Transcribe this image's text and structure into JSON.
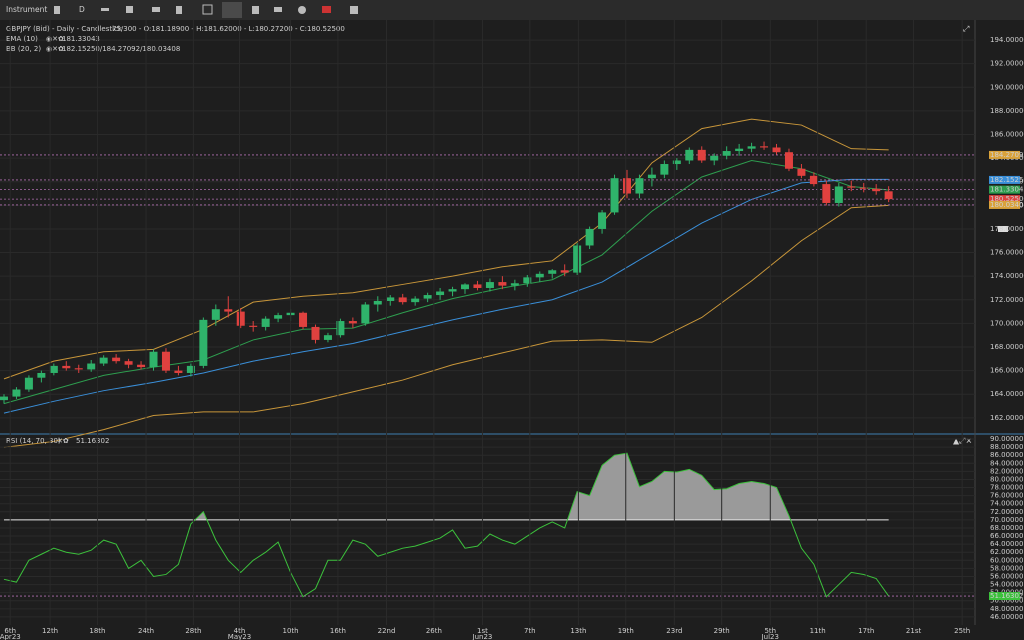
{
  "toolbar": {
    "instrument": "Instrument",
    "period": "D"
  },
  "chart_data": [
    {
      "type": "candlestick",
      "title": "GBPJPY (Bid) - Daily - Candlestick",
      "subtitle": "75/300 - O:181.18900 - H:181.62000 - L:180.27200 - C:180.52500",
      "up_color": "#2fb36b",
      "down_color": "#e0413f",
      "candles": [
        [
          163.5,
          164.0,
          163.2,
          163.8
        ],
        [
          163.8,
          164.6,
          163.6,
          164.4
        ],
        [
          164.4,
          165.6,
          164.2,
          165.4
        ],
        [
          165.4,
          166.0,
          165.0,
          165.8
        ],
        [
          165.8,
          166.6,
          165.6,
          166.4
        ],
        [
          166.4,
          166.8,
          166.0,
          166.2
        ],
        [
          166.2,
          166.5,
          165.8,
          166.1
        ],
        [
          166.1,
          166.9,
          165.9,
          166.6
        ],
        [
          166.6,
          167.3,
          166.4,
          167.1
        ],
        [
          167.1,
          167.4,
          166.6,
          166.8
        ],
        [
          166.8,
          167.0,
          166.2,
          166.5
        ],
        [
          166.5,
          166.8,
          166.1,
          166.3
        ],
        [
          166.3,
          167.8,
          166.0,
          167.6
        ],
        [
          167.6,
          167.9,
          165.8,
          166.0
        ],
        [
          166.0,
          166.4,
          165.6,
          165.8
        ],
        [
          165.8,
          166.6,
          165.5,
          166.4
        ],
        [
          166.4,
          170.5,
          166.2,
          170.3
        ],
        [
          170.3,
          171.6,
          169.8,
          171.2
        ],
        [
          171.2,
          172.3,
          170.5,
          171.0
        ],
        [
          171.0,
          171.3,
          169.6,
          169.8
        ],
        [
          169.8,
          170.2,
          169.3,
          169.7
        ],
        [
          169.7,
          170.6,
          169.4,
          170.4
        ],
        [
          170.4,
          170.9,
          170.1,
          170.7
        ],
        [
          170.7,
          171.2,
          170.2,
          170.9
        ],
        [
          170.9,
          171.0,
          169.5,
          169.7
        ],
        [
          169.7,
          169.9,
          168.3,
          168.6
        ],
        [
          168.6,
          169.2,
          168.4,
          169.0
        ],
        [
          169.0,
          170.4,
          168.8,
          170.2
        ],
        [
          170.2,
          170.5,
          169.6,
          170.0
        ],
        [
          170.0,
          171.8,
          169.8,
          171.6
        ],
        [
          171.6,
          172.3,
          171.0,
          171.9
        ],
        [
          171.9,
          172.4,
          171.5,
          172.2
        ],
        [
          172.2,
          172.5,
          171.6,
          171.8
        ],
        [
          171.8,
          172.3,
          171.5,
          172.1
        ],
        [
          172.1,
          172.6,
          171.8,
          172.4
        ],
        [
          172.4,
          173.0,
          172.0,
          172.7
        ],
        [
          172.7,
          173.1,
          172.3,
          172.9
        ],
        [
          172.9,
          173.4,
          172.5,
          173.3
        ],
        [
          173.3,
          173.6,
          172.8,
          173.0
        ],
        [
          173.0,
          173.8,
          172.7,
          173.5
        ],
        [
          173.5,
          174.0,
          172.9,
          173.2
        ],
        [
          173.2,
          173.7,
          172.8,
          173.4
        ],
        [
          173.4,
          174.1,
          173.1,
          173.9
        ],
        [
          173.9,
          174.4,
          173.5,
          174.2
        ],
        [
          174.2,
          174.6,
          173.8,
          174.5
        ],
        [
          174.5,
          175.0,
          174.0,
          174.3
        ],
        [
          174.3,
          176.8,
          174.1,
          176.6
        ],
        [
          176.6,
          178.2,
          176.3,
          178.0
        ],
        [
          178.0,
          179.6,
          177.6,
          179.4
        ],
        [
          179.4,
          182.6,
          179.2,
          182.3
        ],
        [
          182.3,
          183.0,
          180.6,
          181.0
        ],
        [
          181.0,
          182.6,
          180.6,
          182.3
        ],
        [
          182.3,
          183.2,
          181.6,
          182.6
        ],
        [
          182.6,
          183.8,
          182.3,
          183.5
        ],
        [
          183.5,
          184.0,
          183.0,
          183.8
        ],
        [
          183.8,
          184.9,
          183.5,
          184.7
        ],
        [
          184.7,
          185.0,
          183.6,
          183.8
        ],
        [
          183.8,
          184.4,
          183.4,
          184.2
        ],
        [
          184.2,
          185.0,
          183.9,
          184.6
        ],
        [
          184.6,
          185.2,
          184.2,
          184.8
        ],
        [
          184.8,
          185.3,
          184.5,
          185.0
        ],
        [
          185.0,
          185.4,
          184.7,
          184.9
        ],
        [
          184.9,
          185.2,
          184.3,
          184.5
        ],
        [
          184.5,
          184.8,
          182.9,
          183.1
        ],
        [
          183.1,
          183.5,
          182.3,
          182.5
        ],
        [
          182.5,
          182.8,
          181.6,
          181.8
        ],
        [
          181.8,
          182.1,
          180.0,
          180.2
        ],
        [
          180.2,
          181.9,
          179.9,
          181.6
        ],
        [
          181.6,
          182.1,
          181.2,
          181.5
        ],
        [
          181.5,
          181.9,
          181.1,
          181.4
        ],
        [
          181.4,
          181.8,
          180.9,
          181.2
        ],
        [
          181.189,
          181.62,
          180.272,
          180.525
        ]
      ],
      "ylim": [
        160.8,
        195.7
      ],
      "xlim": [
        -0.32,
        77.93
      ],
      "yticks": [
        {
          "value": 162,
          "label": "162.00000"
        },
        {
          "value": 164,
          "label": "164.00000"
        },
        {
          "value": 166,
          "label": "166.00000"
        },
        {
          "value": 168,
          "label": "168.00000"
        },
        {
          "value": 170,
          "label": "170.00000"
        },
        {
          "value": 172,
          "label": "172.00000"
        },
        {
          "value": 174,
          "label": "174.00000"
        },
        {
          "value": 176,
          "label": "176.00000"
        },
        {
          "value": 178,
          "label": "178.00000"
        },
        {
          "value": 180,
          "label": "180.00000"
        },
        {
          "value": 182,
          "label": "182.00000"
        },
        {
          "value": 184,
          "label": "184.00000"
        },
        {
          "value": 186,
          "label": "186.00000"
        },
        {
          "value": 188,
          "label": "188.00000"
        },
        {
          "value": 190,
          "label": "190.00000"
        },
        {
          "value": 192,
          "label": "192.00000"
        },
        {
          "value": 194,
          "label": "194.00000"
        }
      ],
      "indicators": {
        "x": [
          0,
          4,
          8,
          12,
          16,
          20,
          24,
          28,
          32,
          36,
          40,
          44,
          48,
          52,
          56,
          60,
          64,
          68,
          71
        ],
        "items": [
          {
            "name": "EMA (10)",
            "readout": "181.33043",
            "lines": [
              {
                "color": "#2e9e4f",
                "values": [
                  163.2,
                  164.4,
                  165.6,
                  166.3,
                  166.9,
                  168.6,
                  169.5,
                  169.6,
                  170.9,
                  172.1,
                  173.0,
                  173.7,
                  175.8,
                  179.5,
                  182.4,
                  183.8,
                  183.1,
                  181.6,
                  181.3
                ]
              }
            ]
          },
          {
            "name": "BB (20, 2)",
            "readout": "182.15250/184.27092/180.03408",
            "lines": [
              {
                "color": "#3a8fd9",
                "values": [
                  162.4,
                  163.4,
                  164.3,
                  165.0,
                  165.8,
                  166.8,
                  167.6,
                  168.3,
                  169.3,
                  170.3,
                  171.2,
                  172.0,
                  173.5,
                  176.0,
                  178.5,
                  180.5,
                  181.9,
                  182.2,
                  182.2
                ]
              },
              {
                "color": "#c8963a",
                "values": [
                  165.3,
                  166.8,
                  167.6,
                  167.8,
                  169.5,
                  171.8,
                  172.3,
                  172.6,
                  173.3,
                  174.0,
                  174.8,
                  175.3,
                  178.5,
                  183.6,
                  186.5,
                  187.3,
                  186.8,
                  184.8,
                  184.7
                ]
              },
              {
                "color": "#c8963a",
                "values": [
                  159.5,
                  160.0,
                  161.0,
                  162.2,
                  162.5,
                  162.5,
                  163.2,
                  164.2,
                  165.2,
                  166.5,
                  167.5,
                  168.5,
                  168.6,
                  168.4,
                  170.5,
                  173.6,
                  177.0,
                  179.8,
                  180.0
                ]
              }
            ]
          }
        ]
      },
      "levels": [
        {
          "value": 184.27092,
          "label": "184.27092",
          "color": "#d9a23a"
        },
        {
          "value": 182.1525,
          "label": "182.15250",
          "color": "#3a8fd9"
        },
        {
          "value": 181.33043,
          "label": "181.33043",
          "color": "#2e9e4f"
        },
        {
          "value": 180.525,
          "label": "180.52500",
          "color": "#e0413f"
        },
        {
          "value": 180.03408,
          "label": "180.03408",
          "color": "#d9a23a"
        }
      ]
    },
    {
      "type": "line",
      "title": "RSI (14, 70, 30)",
      "readout": "51.16302",
      "color": "#3cc13c",
      "fill_color": "#9a9a9a",
      "values": [
        55.3,
        54.6,
        60,
        61.5,
        63,
        62,
        61.5,
        62.5,
        65,
        64,
        58,
        60,
        56,
        56.5,
        59,
        69,
        72,
        65,
        60,
        57,
        60,
        62,
        64.5,
        57,
        51,
        53,
        60,
        60,
        65,
        64,
        61,
        62,
        63,
        63.5,
        64.5,
        65.5,
        67.5,
        63,
        63.5,
        66.5,
        65,
        64,
        66,
        68,
        69.5,
        68,
        77,
        76,
        83.5,
        86,
        86.5,
        78.2,
        79.5,
        82,
        81.8,
        82.5,
        81,
        77.5,
        77.7,
        79,
        79.5,
        79,
        78,
        71,
        63,
        59,
        51,
        54,
        57,
        56.5,
        55.5,
        51.16302
      ],
      "level": 70,
      "ylim": [
        44,
        90.5
      ],
      "xlim": [
        -0.32,
        77.93
      ],
      "yticks": [
        {
          "value": 46,
          "label": "46.00000"
        },
        {
          "value": 48,
          "label": "48.00000"
        },
        {
          "value": 50,
          "label": "50.00000"
        },
        {
          "value": 52,
          "label": "52.00000"
        },
        {
          "value": 54,
          "label": "54.00000"
        },
        {
          "value": 56,
          "label": "56.00000"
        },
        {
          "value": 58,
          "label": "58.00000"
        },
        {
          "value": 60,
          "label": "60.00000"
        },
        {
          "value": 62,
          "label": "62.00000"
        },
        {
          "value": 64,
          "label": "64.00000"
        },
        {
          "value": 66,
          "label": "66.00000"
        },
        {
          "value": 68,
          "label": "68.00000"
        },
        {
          "value": 70,
          "label": "70.00000"
        },
        {
          "value": 72,
          "label": "72.00000"
        },
        {
          "value": 74,
          "label": "74.00000"
        },
        {
          "value": 76,
          "label": "76.00000"
        },
        {
          "value": 78,
          "label": "78.00000"
        },
        {
          "value": 80,
          "label": "80.00000"
        },
        {
          "value": 82,
          "label": "82.00000"
        },
        {
          "value": 84,
          "label": "84.00000"
        },
        {
          "value": 86,
          "label": "86.00000"
        },
        {
          "value": 88,
          "label": "88.00000"
        },
        {
          "value": 90,
          "label": "90.00000"
        }
      ],
      "xticks": [
        {
          "value": 0.5,
          "label": "6th"
        },
        {
          "value": 3.7,
          "label": "12th"
        },
        {
          "value": 7.5,
          "label": "18th"
        },
        {
          "value": 11.4,
          "label": "24th"
        },
        {
          "value": 15.2,
          "label": "28th"
        },
        {
          "value": 18.9,
          "label": "4th"
        },
        {
          "value": 23.0,
          "label": "10th"
        },
        {
          "value": 26.8,
          "label": "16th"
        },
        {
          "value": 30.7,
          "label": "22nd"
        },
        {
          "value": 34.5,
          "label": "26th"
        },
        {
          "value": 38.4,
          "label": "1st"
        },
        {
          "value": 42.2,
          "label": "7th"
        },
        {
          "value": 46.1,
          "label": "13th"
        },
        {
          "value": 49.9,
          "label": "19th"
        },
        {
          "value": 53.8,
          "label": "23rd"
        },
        {
          "value": 57.6,
          "label": "29th"
        },
        {
          "value": 61.5,
          "label": "5th"
        },
        {
          "value": 65.3,
          "label": "11th"
        },
        {
          "value": 69.2,
          "label": "17th"
        },
        {
          "value": 73.0,
          "label": "21st"
        },
        {
          "value": 76.9,
          "label": "25th"
        }
      ],
      "month_ticks": [
        {
          "value": 0.5,
          "label": "Apr23"
        },
        {
          "value": 18.9,
          "label": "May23"
        },
        {
          "value": 38.4,
          "label": "Jun23"
        },
        {
          "value": 61.5,
          "label": "Jul23"
        }
      ]
    }
  ]
}
